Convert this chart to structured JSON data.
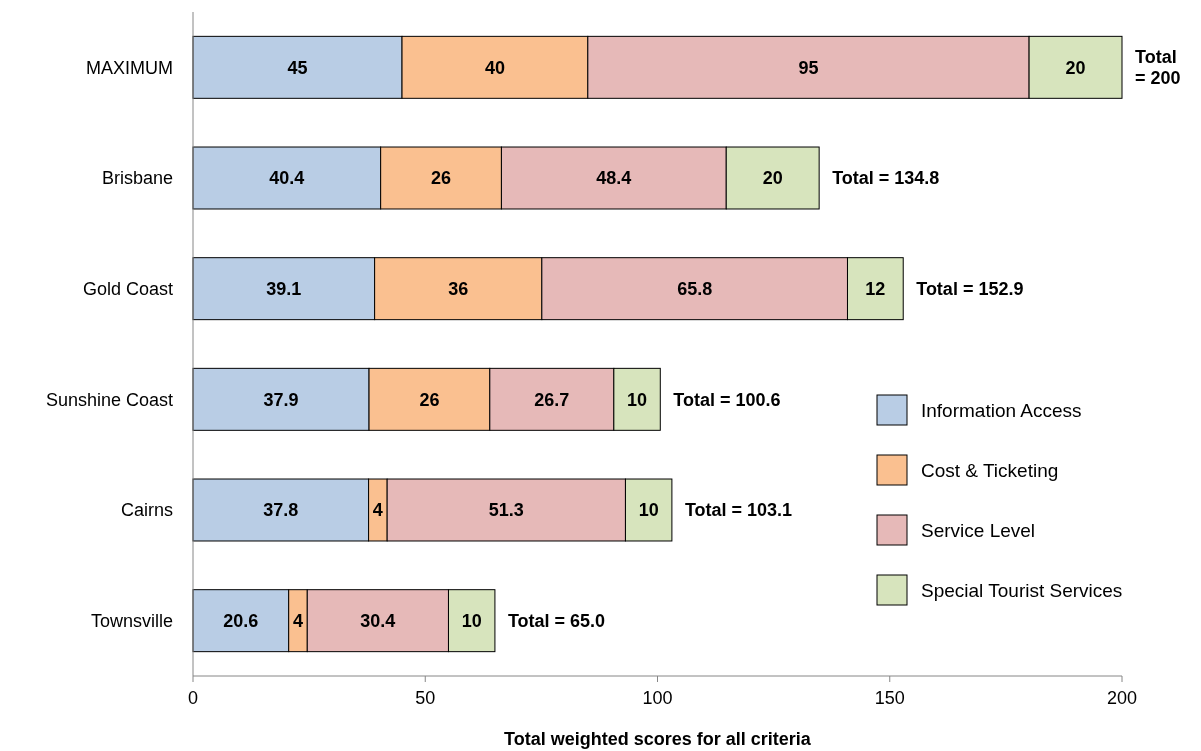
{
  "chart_data": {
    "type": "bar",
    "orientation": "horizontal",
    "stacked": true,
    "xlabel": "Total weighted scores for all criteria",
    "categories": [
      "MAXIMUM",
      "Brisbane",
      "Gold Coast",
      "Sunshine Coast",
      "Cairns",
      "Townsville"
    ],
    "series": [
      {
        "name": "Information Access",
        "color": "#b9cde5",
        "values": [
          45,
          40.4,
          39.1,
          37.9,
          37.8,
          20.6
        ]
      },
      {
        "name": "Cost & Ticketing",
        "color": "#fac090",
        "values": [
          40,
          26,
          36,
          26,
          4,
          4
        ]
      },
      {
        "name": "Service Level",
        "color": "#e6b9b8",
        "values": [
          95,
          48.4,
          65.8,
          26.7,
          51.3,
          30.4
        ]
      },
      {
        "name": "Special Tourist Services",
        "color": "#d7e4bd",
        "values": [
          20,
          20,
          12,
          10,
          10,
          10
        ]
      }
    ],
    "totals": [
      "Total = 200",
      "Total = 134.8",
      "Total = 152.9",
      "Total = 100.6",
      "Total = 103.1",
      "Total = 65.0"
    ],
    "data_labels": true,
    "xlim": [
      0,
      200
    ],
    "xticks": [
      0,
      50,
      100,
      150,
      200
    ],
    "grid": false,
    "legend": "right"
  }
}
